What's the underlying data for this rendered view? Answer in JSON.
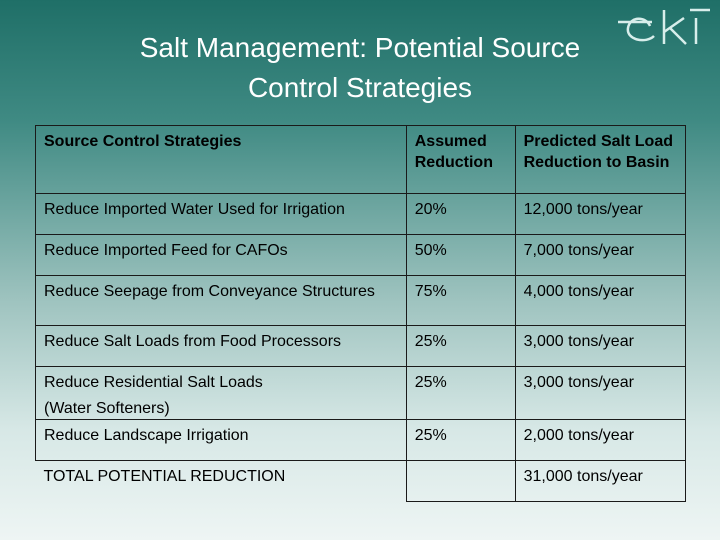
{
  "slide": {
    "title_line1": "Salt Management: Potential Source",
    "title_line2": "Control Strategies",
    "logo_text": "eki"
  },
  "table": {
    "headers": [
      "Source Control Strategies",
      "Assumed Reduction",
      "Predicted Salt Load Reduction to Basin"
    ],
    "rows": [
      {
        "strategy": "Reduce Imported Water Used for Irrigation",
        "reduction": "20%",
        "load": "12,000 tons/year"
      },
      {
        "strategy": "Reduce Imported Feed for CAFOs",
        "reduction": "50%",
        "load": "7,000 tons/year"
      },
      {
        "strategy": "Reduce Seepage from Conveyance Structures",
        "reduction": "75%",
        "load": "4,000 tons/year"
      },
      {
        "strategy": "Reduce Salt Loads from Food Processors",
        "reduction": "25%",
        "load": "3,000 tons/year"
      },
      {
        "strategy_line1": "Reduce Residential Salt Loads",
        "strategy_line2": "(Water Softeners)",
        "reduction": "25%",
        "load": "3,000 tons/year"
      },
      {
        "strategy": "Reduce Landscape Irrigation",
        "reduction": "25%",
        "load": "2,000 tons/year"
      }
    ],
    "total": {
      "label": "TOTAL POTENTIAL REDUCTION",
      "reduction": "",
      "load": "31,000 tons/year"
    }
  }
}
